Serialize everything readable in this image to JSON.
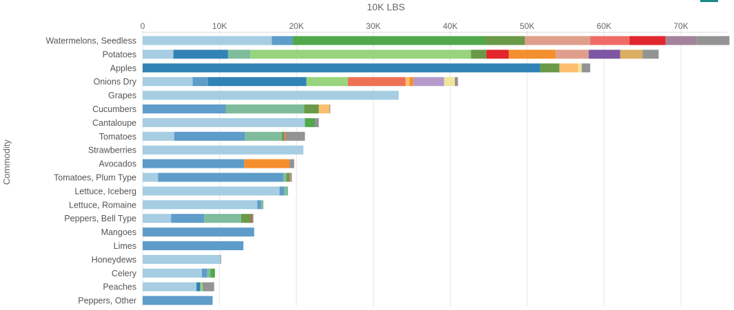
{
  "chart_data": {
    "type": "bar",
    "orientation": "horizontal",
    "stacked": true,
    "title": "10K LBS",
    "xlabel": "",
    "ylabel": "Commodity",
    "xlim": [
      0,
      76000
    ],
    "x_ticks": [
      {
        "value": 0,
        "label": "0"
      },
      {
        "value": 10000,
        "label": "10K"
      },
      {
        "value": 20000,
        "label": "20K"
      },
      {
        "value": 30000,
        "label": "30K"
      },
      {
        "value": 40000,
        "label": "40K"
      },
      {
        "value": 50000,
        "label": "50K"
      },
      {
        "value": 60000,
        "label": "60K"
      },
      {
        "value": 70000,
        "label": "70K"
      }
    ],
    "grid": "vertical",
    "legend": "none",
    "categories": [
      "Watermelons, Seedless",
      "Potatoes",
      "Apples",
      "Onions Dry",
      "Grapes",
      "Cucumbers",
      "Cantaloupe",
      "Tomatoes",
      "Strawberries",
      "Avocados",
      "Tomatoes, Plum Type",
      "Lettuce, Iceberg",
      "Lettuce, Romaine",
      "Peppers, Bell Type",
      "Mangoes",
      "Limes",
      "Honeydews",
      "Celery",
      "Peaches",
      "Peppers, Other"
    ],
    "rows": [
      {
        "category": "Watermelons, Seedless",
        "segments": [
          {
            "value": 16800,
            "color": "#a6cde2"
          },
          {
            "value": 2700,
            "color": "#5e9cc9"
          },
          {
            "value": 25000,
            "color": "#52a84a"
          },
          {
            "value": 5200,
            "color": "#6a9a48"
          },
          {
            "value": 8500,
            "color": "#df9f8c"
          },
          {
            "value": 5100,
            "color": "#ef6b66"
          },
          {
            "value": 4700,
            "color": "#e1262d"
          },
          {
            "value": 4000,
            "color": "#a3839a"
          },
          {
            "value": 4300,
            "color": "#939393"
          }
        ]
      },
      {
        "category": "Potatoes",
        "segments": [
          {
            "value": 4000,
            "color": "#a6cde2"
          },
          {
            "value": 7100,
            "color": "#3183b5"
          },
          {
            "value": 2900,
            "color": "#7fbc9b"
          },
          {
            "value": 28700,
            "color": "#98d47d"
          },
          {
            "value": 2000,
            "color": "#6a9a48"
          },
          {
            "value": 2900,
            "color": "#e1262d"
          },
          {
            "value": 6100,
            "color": "#f48f2d"
          },
          {
            "value": 4300,
            "color": "#df9f8c"
          },
          {
            "value": 4100,
            "color": "#7e56a4"
          },
          {
            "value": 2900,
            "color": "#dbae62"
          },
          {
            "value": 2100,
            "color": "#939393"
          }
        ]
      },
      {
        "category": "Apples",
        "segments": [
          {
            "value": 51700,
            "color": "#3183b5"
          },
          {
            "value": 2500,
            "color": "#6a9a48"
          },
          {
            "value": 2400,
            "color": "#fdbe6f"
          },
          {
            "value": 500,
            "color": "#f0e39b"
          },
          {
            "value": 1100,
            "color": "#939393"
          }
        ]
      },
      {
        "category": "Onions Dry",
        "segments": [
          {
            "value": 6500,
            "color": "#a6cde2"
          },
          {
            "value": 2000,
            "color": "#5e9cc9"
          },
          {
            "value": 12800,
            "color": "#3183b5"
          },
          {
            "value": 5400,
            "color": "#98d47d"
          },
          {
            "value": 7500,
            "color": "#ee7156"
          },
          {
            "value": 500,
            "color": "#fdbe6f"
          },
          {
            "value": 500,
            "color": "#f48f2d"
          },
          {
            "value": 4000,
            "color": "#b69ac9"
          },
          {
            "value": 1400,
            "color": "#f0e39b"
          },
          {
            "value": 400,
            "color": "#939393"
          }
        ]
      },
      {
        "category": "Grapes",
        "segments": [
          {
            "value": 33300,
            "color": "#a6cde2"
          }
        ]
      },
      {
        "category": "Cucumbers",
        "segments": [
          {
            "value": 10800,
            "color": "#5e9cc9"
          },
          {
            "value": 10200,
            "color": "#7fbc9b"
          },
          {
            "value": 1900,
            "color": "#6a9a48"
          },
          {
            "value": 1400,
            "color": "#fdbe6f"
          },
          {
            "value": 100,
            "color": "#939393"
          }
        ]
      },
      {
        "category": "Cantaloupe",
        "segments": [
          {
            "value": 21100,
            "color": "#a6cde2"
          },
          {
            "value": 1300,
            "color": "#52a84a"
          },
          {
            "value": 500,
            "color": "#939393"
          }
        ]
      },
      {
        "category": "Tomatoes",
        "segments": [
          {
            "value": 4100,
            "color": "#a6cde2"
          },
          {
            "value": 9200,
            "color": "#5e9cc9"
          },
          {
            "value": 4800,
            "color": "#7fbc9b"
          },
          {
            "value": 300,
            "color": "#6a9a48"
          },
          {
            "value": 200,
            "color": "#ee7156"
          },
          {
            "value": 2500,
            "color": "#939393"
          }
        ]
      },
      {
        "category": "Strawberries",
        "segments": [
          {
            "value": 20900,
            "color": "#a6cde2"
          }
        ]
      },
      {
        "category": "Avocados",
        "segments": [
          {
            "value": 13200,
            "color": "#5e9cc9"
          },
          {
            "value": 5900,
            "color": "#f48f2d"
          },
          {
            "value": 600,
            "color": "#939393"
          }
        ]
      },
      {
        "category": "Tomatoes, Plum Type",
        "segments": [
          {
            "value": 2000,
            "color": "#a6cde2"
          },
          {
            "value": 16300,
            "color": "#5e9cc9"
          },
          {
            "value": 400,
            "color": "#7fbc9b"
          },
          {
            "value": 400,
            "color": "#6a9a48"
          },
          {
            "value": 100,
            "color": "#ee7156"
          },
          {
            "value": 200,
            "color": "#939393"
          }
        ]
      },
      {
        "category": "Lettuce, Iceberg",
        "segments": [
          {
            "value": 17800,
            "color": "#a6cde2"
          },
          {
            "value": 600,
            "color": "#5e9cc9"
          },
          {
            "value": 500,
            "color": "#7fbc9b"
          }
        ]
      },
      {
        "category": "Lettuce, Romaine",
        "segments": [
          {
            "value": 14900,
            "color": "#a6cde2"
          },
          {
            "value": 500,
            "color": "#5e9cc9"
          },
          {
            "value": 300,
            "color": "#7fbc9b"
          }
        ]
      },
      {
        "category": "Peppers, Bell Type",
        "segments": [
          {
            "value": 3700,
            "color": "#a6cde2"
          },
          {
            "value": 4300,
            "color": "#5e9cc9"
          },
          {
            "value": 4800,
            "color": "#7fbc9b"
          },
          {
            "value": 1300,
            "color": "#6a9a48"
          },
          {
            "value": 100,
            "color": "#e1262d"
          },
          {
            "value": 200,
            "color": "#939393"
          }
        ]
      },
      {
        "category": "Mangoes",
        "segments": [
          {
            "value": 14500,
            "color": "#5e9cc9"
          }
        ]
      },
      {
        "category": "Limes",
        "segments": [
          {
            "value": 13100,
            "color": "#5e9cc9"
          }
        ]
      },
      {
        "category": "Honeydews",
        "segments": [
          {
            "value": 10100,
            "color": "#a6cde2"
          },
          {
            "value": 100,
            "color": "#939393"
          }
        ]
      },
      {
        "category": "Celery",
        "segments": [
          {
            "value": 7700,
            "color": "#a6cde2"
          },
          {
            "value": 700,
            "color": "#5e9cc9"
          },
          {
            "value": 400,
            "color": "#7fbc9b"
          },
          {
            "value": 600,
            "color": "#52a84a"
          }
        ]
      },
      {
        "category": "Peaches",
        "segments": [
          {
            "value": 7000,
            "color": "#a6cde2"
          },
          {
            "value": 500,
            "color": "#3183b5"
          },
          {
            "value": 300,
            "color": "#98d47d"
          },
          {
            "value": 1500,
            "color": "#939393"
          }
        ]
      },
      {
        "category": "Peppers, Other",
        "segments": [
          {
            "value": 9100,
            "color": "#5e9cc9"
          }
        ]
      }
    ]
  },
  "colors": {
    "grid": "#e6e6e6",
    "axis_text": "#666666",
    "label_text": "#555555",
    "title_text": "#666666",
    "badge": "#1d8a86"
  }
}
